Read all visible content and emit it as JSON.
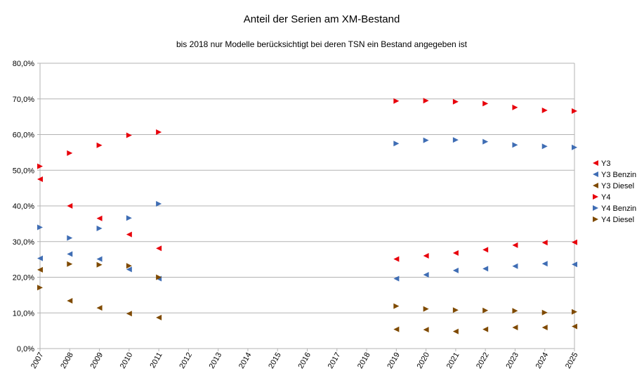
{
  "chart_data": {
    "type": "scatter",
    "title": "Anteil der Serien am XM-Bestand",
    "subtitle": "bis 2018 nur Modelle berücksichtigt bei deren TSN ein Bestand angegeben ist",
    "xlabel": "",
    "ylabel": "",
    "categories": [
      "2007",
      "2008",
      "2009",
      "2010",
      "2011",
      "2012",
      "2013",
      "2014",
      "2015",
      "2016",
      "2017",
      "2018",
      "2019",
      "2020",
      "2021",
      "2022",
      "2023",
      "2024",
      "2025"
    ],
    "ylim": [
      0,
      0.8
    ],
    "yticks": [
      0,
      0.1,
      0.2,
      0.3,
      0.4,
      0.5,
      0.6,
      0.7,
      0.8
    ],
    "ytick_labels": [
      "0,0%",
      "10,0%",
      "20,0%",
      "30,0%",
      "40,0%",
      "50,0%",
      "60,0%",
      "70,0%",
      "80,0%"
    ],
    "grid": true,
    "legend": "right",
    "series": [
      {
        "name": "Y3",
        "marker": "triangle-left",
        "color": "#e8000b",
        "values": [
          0.475,
          0.4,
          0.365,
          0.32,
          0.281,
          null,
          null,
          null,
          null,
          null,
          null,
          null,
          0.251,
          0.26,
          0.268,
          0.277,
          0.29,
          0.297,
          0.298
        ]
      },
      {
        "name": "Y3 Benzin",
        "marker": "triangle-left",
        "color": "#3f6db4",
        "values": [
          0.253,
          0.265,
          0.251,
          0.222,
          0.196,
          null,
          null,
          null,
          null,
          null,
          null,
          null,
          0.196,
          0.207,
          0.219,
          0.224,
          0.231,
          0.238,
          0.236
        ]
      },
      {
        "name": "Y3 Diesel",
        "marker": "triangle-left",
        "color": "#7f4a00",
        "values": [
          0.221,
          0.134,
          0.114,
          0.098,
          0.087,
          null,
          null,
          null,
          null,
          null,
          null,
          null,
          0.054,
          0.053,
          0.048,
          0.054,
          0.059,
          0.059,
          0.062
        ]
      },
      {
        "name": "Y4",
        "marker": "triangle-right",
        "color": "#e8000b",
        "values": [
          0.511,
          0.548,
          0.57,
          0.598,
          0.607,
          null,
          null,
          null,
          null,
          null,
          null,
          null,
          0.694,
          0.695,
          0.692,
          0.687,
          0.676,
          0.668,
          0.666
        ]
      },
      {
        "name": "Y4 Benzin",
        "marker": "triangle-right",
        "color": "#3f6db4",
        "values": [
          0.34,
          0.31,
          0.337,
          0.366,
          0.406,
          null,
          null,
          null,
          null,
          null,
          null,
          null,
          0.575,
          0.584,
          0.585,
          0.58,
          0.571,
          0.567,
          0.564
        ]
      },
      {
        "name": "Y4 Diesel",
        "marker": "triangle-right",
        "color": "#7f4a00",
        "values": [
          0.171,
          0.237,
          0.235,
          0.232,
          0.2,
          null,
          null,
          null,
          null,
          null,
          null,
          null,
          0.119,
          0.111,
          0.108,
          0.107,
          0.106,
          0.101,
          0.103
        ]
      }
    ]
  }
}
